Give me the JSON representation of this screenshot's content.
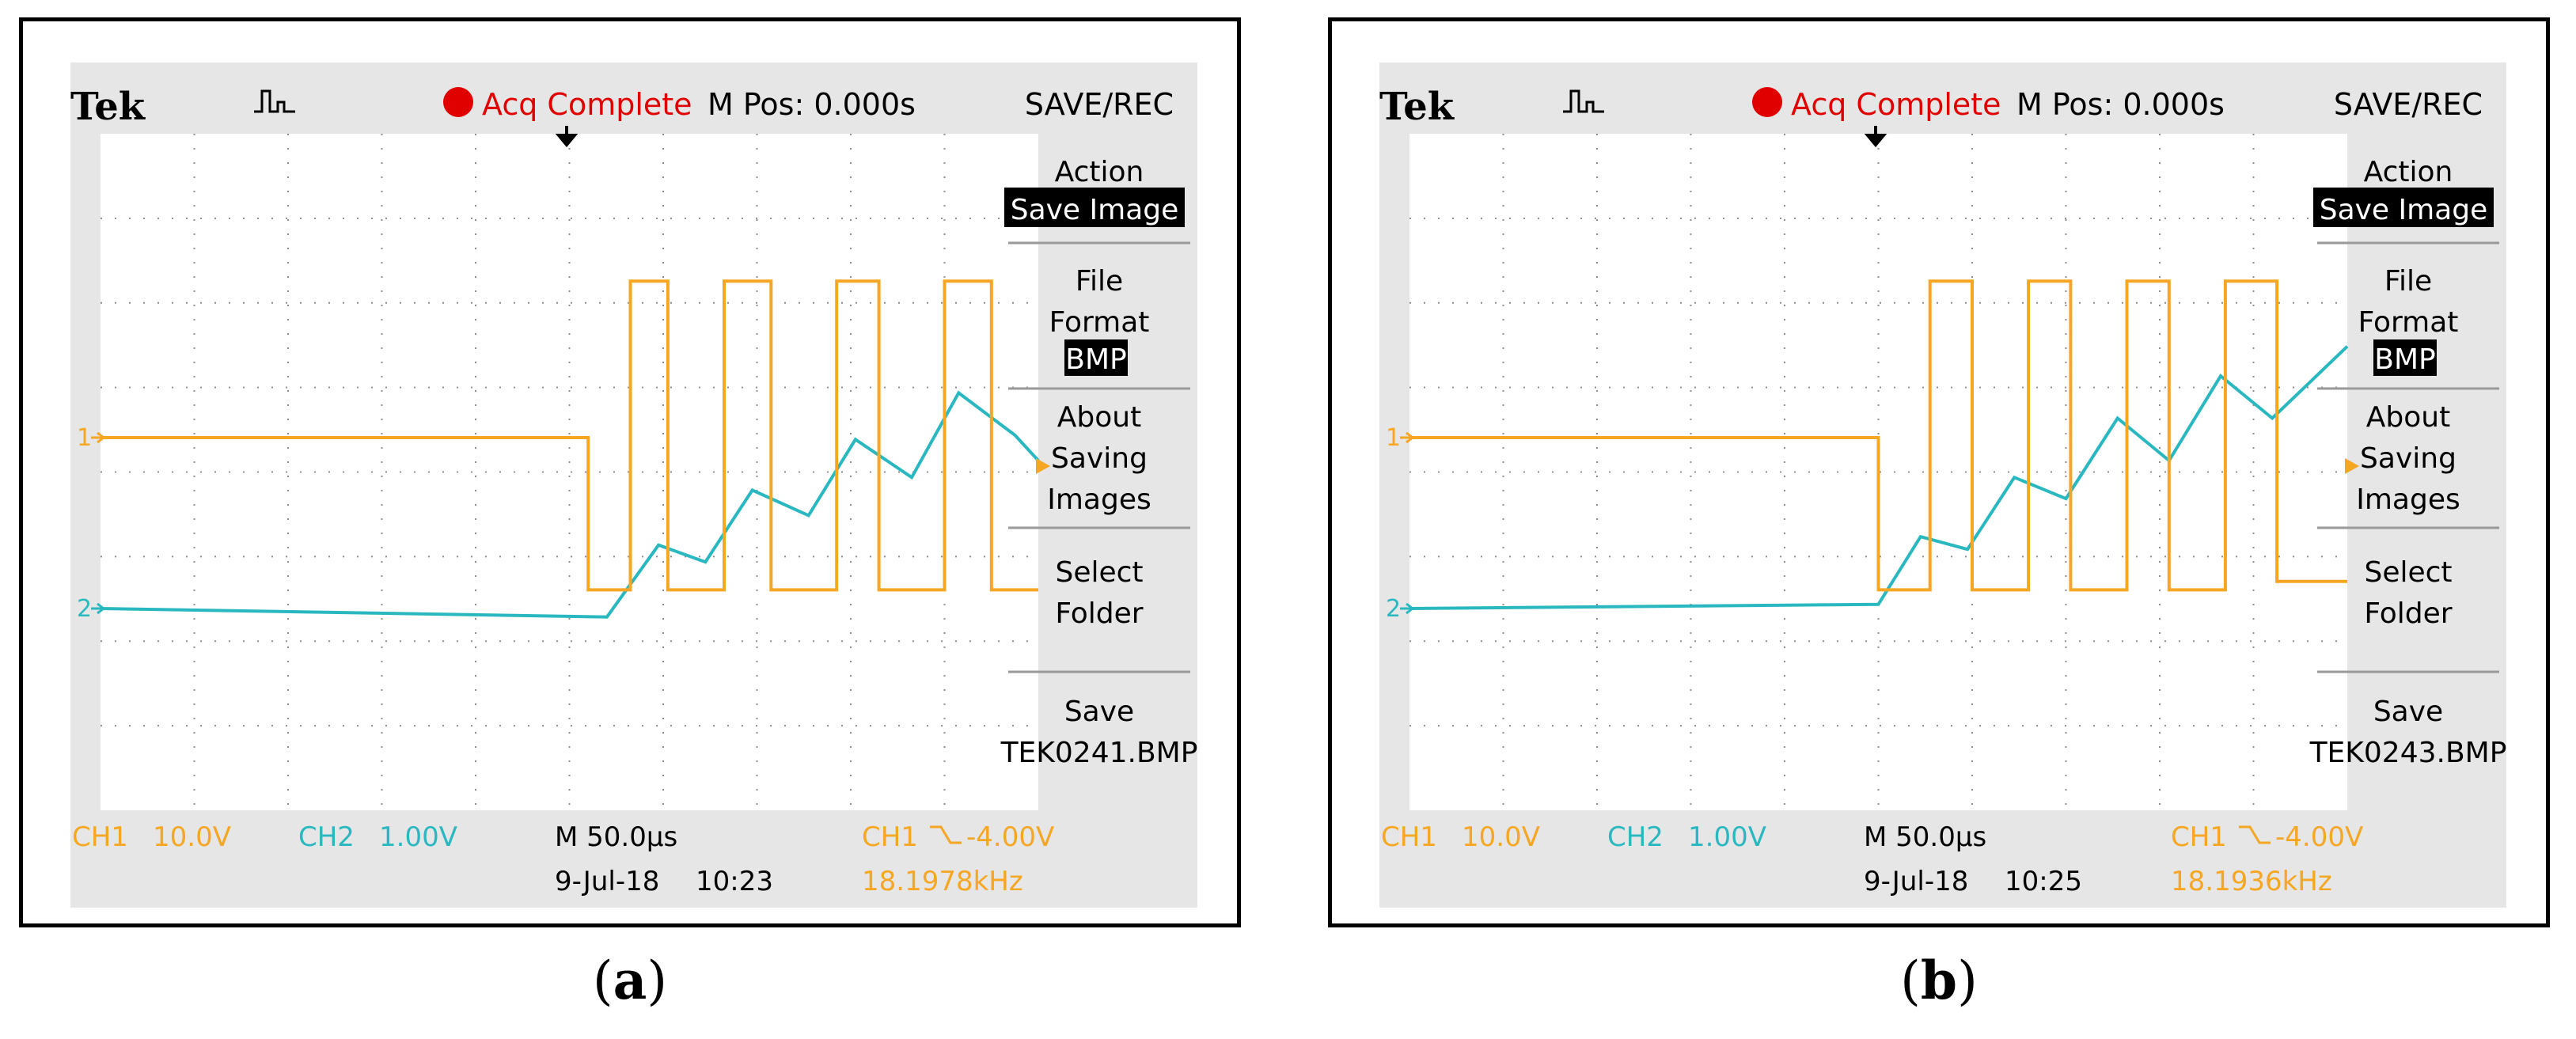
{
  "colors": {
    "ch1": "#f5a623",
    "ch2": "#2ab8c0",
    "record": "#e00000",
    "grid": "#8c8c8c",
    "screen": "#ffffff",
    "bezel": "#e6e6e6"
  },
  "icons": [
    "record-dot-icon",
    "trigger-waveform-icon",
    "trigger-position-icon",
    "ch1-marker-icon",
    "ch2-marker-icon",
    "trigger-level-icon",
    "falling-edge-icon"
  ],
  "panels": [
    {
      "caption_open": "(",
      "caption_letter": "a",
      "caption_close": ")",
      "header": {
        "brand": "Tek",
        "status": "Acq Complete",
        "mpos": "M Pos: 0.000s"
      },
      "menu": {
        "title": "SAVE/REC",
        "action_label": "Action",
        "action_value": "Save Image",
        "file_label_1": "File",
        "file_label_2": "Format",
        "file_value": "BMP",
        "about_1": "About",
        "about_2": "Saving",
        "about_3": "Images",
        "select_1": "Select",
        "select_2": "Folder",
        "save_1": "Save",
        "save_2": "TEK0241.BMP"
      },
      "footer": {
        "ch1_label": "CH1",
        "ch1_scale": "10.0V",
        "ch2_label": "CH2",
        "ch2_scale": "1.00V",
        "timebase": "M 50.0μs",
        "date": "9-Jul-18",
        "time": "10:23",
        "trig_src": "CH1",
        "trig_level": "-4.00V",
        "freq": "18.1978kHz"
      },
      "ch1_label": "1",
      "ch2_label": "2"
    },
    {
      "caption_open": "(",
      "caption_letter": "b",
      "caption_close": ")",
      "header": {
        "brand": "Tek",
        "status": "Acq Complete",
        "mpos": "M Pos: 0.000s"
      },
      "menu": {
        "title": "SAVE/REC",
        "action_label": "Action",
        "action_value": "Save Image",
        "file_label_1": "File",
        "file_label_2": "Format",
        "file_value": "BMP",
        "about_1": "About",
        "about_2": "Saving",
        "about_3": "Images",
        "select_1": "Select",
        "select_2": "Folder",
        "save_1": "Save",
        "save_2": "TEK0243.BMP"
      },
      "footer": {
        "ch1_label": "CH1",
        "ch1_scale": "10.0V",
        "ch2_label": "CH2",
        "ch2_scale": "1.00V",
        "timebase": "M 50.0μs",
        "date": "9-Jul-18",
        "time": "10:25",
        "trig_src": "CH1",
        "trig_level": "-4.00V",
        "freq": "18.1936kHz"
      },
      "ch1_label": "1",
      "ch2_label": "2"
    }
  ],
  "chart_data": [
    {
      "type": "line",
      "grid": true,
      "x_divisions": 10,
      "y_divisions": 8,
      "x_unit": "div",
      "series": [
        {
          "channel": "CH1",
          "x": [
            0,
            5.2,
            5.2,
            5.65,
            5.65,
            6.05,
            6.05,
            6.65,
            6.65,
            7.15,
            7.15,
            7.85,
            7.85,
            8.3,
            8.3,
            9.0,
            9.0,
            9.5,
            9.5,
            10.0
          ],
          "y": [
            0,
            0,
            -1.8,
            -1.8,
            1.85,
            1.85,
            -1.8,
            -1.8,
            1.85,
            1.85,
            -1.8,
            -1.8,
            1.85,
            1.85,
            -1.8,
            -1.8,
            1.85,
            1.85,
            -1.8,
            -1.8
          ]
        },
        {
          "channel": "CH2",
          "x": [
            0,
            5.4,
            5.95,
            6.45,
            6.95,
            7.55,
            8.05,
            8.65,
            9.15,
            9.75,
            10.0
          ],
          "y": [
            0,
            -0.1,
            0.75,
            0.55,
            1.4,
            1.1,
            2.0,
            1.55,
            2.55,
            2.05,
            1.75
          ]
        }
      ]
    },
    {
      "type": "line",
      "grid": true,
      "x_divisions": 10,
      "y_divisions": 8,
      "x_unit": "div",
      "series": [
        {
          "channel": "CH1",
          "x": [
            0,
            5.0,
            5.0,
            5.55,
            5.55,
            6.0,
            6.0,
            6.6,
            6.6,
            7.05,
            7.05,
            7.65,
            7.65,
            8.1,
            8.1,
            8.7,
            8.7,
            9.25,
            9.25,
            10.0
          ],
          "y": [
            0,
            0,
            -1.8,
            -1.8,
            1.85,
            1.85,
            -1.8,
            -1.8,
            1.85,
            1.85,
            -1.8,
            -1.8,
            1.85,
            1.85,
            -1.8,
            -1.8,
            1.85,
            1.85,
            -1.7,
            -1.7
          ]
        },
        {
          "channel": "CH2",
          "x": [
            0,
            5.0,
            5.45,
            5.95,
            6.45,
            7.0,
            7.55,
            8.1,
            8.65,
            9.2,
            10.0
          ],
          "y": [
            0,
            0.05,
            0.85,
            0.7,
            1.55,
            1.3,
            2.25,
            1.75,
            2.75,
            2.25,
            3.1
          ]
        }
      ]
    }
  ]
}
